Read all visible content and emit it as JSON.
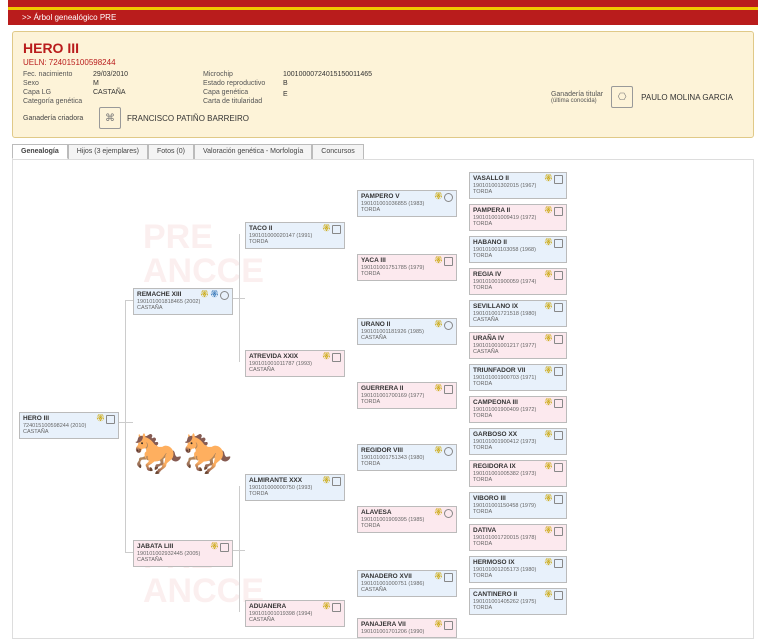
{
  "breadcrumb": ">>   Árbol genealógico PRE",
  "header": {
    "name": "HERO III",
    "ueln_label": "UELN: 724015100598244",
    "labels1": [
      "Fec. nacimiento",
      "Sexo",
      "Capa LG",
      "Categoría genética"
    ],
    "vals1": [
      "29/03/2010",
      "M",
      "CASTAÑA",
      ""
    ],
    "labels2": [
      "Microchip",
      "Estado reproductivo",
      "Capa genética",
      "Carta de titularidad"
    ],
    "vals2": [
      "10010000724015150011465",
      "B",
      "",
      "E"
    ],
    "breeder_label": "Ganadería criadora",
    "breeder_name": "FRANCISCO PATIÑO BARREIRO",
    "owner_label1": "Ganadería titular",
    "owner_label2": "(última conocida)",
    "owner_name": "PAULO MOLINA GARCIA"
  },
  "tabs": [
    "Genealogía",
    "Hijos (3 ejemplares)",
    "Fotos (0)",
    "Valoración genética - Morfología",
    "Concursos"
  ],
  "active_tab": 0,
  "colors": {
    "male": "#e8f1fb",
    "female": "#fce9ee",
    "border": "#bbbbbb",
    "accent": "#b91c1c"
  },
  "nodes": {
    "root": {
      "name": "HERO III",
      "code": "724015100598244 (2010)",
      "coat": "CASTAÑA",
      "sex": "male",
      "badges": [
        "gold",
        "box"
      ]
    },
    "sire": {
      "name": "REMACHE XIII",
      "code": "190101001818465 (2002)",
      "coat": "CASTAÑA",
      "sex": "male",
      "badges": [
        "gold",
        "blue",
        "circle"
      ]
    },
    "dam": {
      "name": "JABATA LIII",
      "code": "190101002932445 (2005)",
      "coat": "CASTAÑA",
      "sex": "female",
      "badges": [
        "gold",
        "box"
      ]
    },
    "ss": {
      "name": "TACO II",
      "code": "190101000020147 (1991)",
      "coat": "TORDA",
      "sex": "male",
      "badges": [
        "gold",
        "box"
      ]
    },
    "sd": {
      "name": "ATREVIDA XXIX",
      "code": "190101001011787 (1993)",
      "coat": "CASTAÑA",
      "sex": "female",
      "badges": [
        "gold",
        "box"
      ]
    },
    "ds": {
      "name": "ALMIRANTE XXX",
      "code": "190101000000750 (1993)",
      "coat": "TORDA",
      "sex": "male",
      "badges": [
        "gold",
        "box"
      ]
    },
    "dd": {
      "name": "ADUANERA",
      "code": "190101001019398 (1994)",
      "coat": "CASTAÑA",
      "sex": "female",
      "badges": [
        "gold",
        "box"
      ]
    },
    "sss": {
      "name": "PAMPERO V",
      "code": "190101001036855 (1983)",
      "coat": "TORDA",
      "sex": "male",
      "badges": [
        "gold",
        "circle"
      ]
    },
    "ssd": {
      "name": "YACA III",
      "code": "190101001751785 (1979)",
      "coat": "TORDA",
      "sex": "female",
      "badges": [
        "gold",
        "box"
      ]
    },
    "sds": {
      "name": "URANO II",
      "code": "190101001181926 (1985)",
      "coat": "CASTAÑA",
      "sex": "male",
      "badges": [
        "gold",
        "circle"
      ]
    },
    "sdd": {
      "name": "GUERRERA II",
      "code": "190101001700169 (1977)",
      "coat": "TORDA",
      "sex": "female",
      "badges": [
        "gold",
        "box"
      ]
    },
    "dss": {
      "name": "REGIDOR VIII",
      "code": "190101001751343 (1980)",
      "coat": "TORDA",
      "sex": "male",
      "badges": [
        "gold",
        "circle"
      ]
    },
    "dsd": {
      "name": "ALAVESA",
      "code": "190101001909395 (1985)",
      "coat": "TORDA",
      "sex": "female",
      "badges": [
        "gold",
        "circle"
      ]
    },
    "dds": {
      "name": "PANADERO XVII",
      "code": "190101001000751 (1986)",
      "coat": "CASTAÑA",
      "sex": "male",
      "badges": [
        "gold",
        "box"
      ]
    },
    "ddd": {
      "name": "PANAJERA VII",
      "code": "190101001701206 (1990)",
      "coat": "TORDA",
      "sex": "female",
      "badges": [
        "gold",
        "box"
      ]
    },
    "g5": [
      {
        "name": "VASALLO II",
        "code": "190101001302015 (1967)",
        "coat": "TORDA",
        "sex": "male"
      },
      {
        "name": "PAMPERA II",
        "code": "190101001009419 (1972)",
        "coat": "TORDA",
        "sex": "female"
      },
      {
        "name": "HABANO II",
        "code": "190101001103058 (1968)",
        "coat": "TORDA",
        "sex": "male"
      },
      {
        "name": "REGIA IV",
        "code": "190101001900059 (1974)",
        "coat": "TORDA",
        "sex": "female"
      },
      {
        "name": "SEVILLANO IX",
        "code": "190101001721518 (1980)",
        "coat": "CASTAÑA",
        "sex": "male"
      },
      {
        "name": "URAÑA IV",
        "code": "190101001001217 (1977)",
        "coat": "CASTAÑA",
        "sex": "female"
      },
      {
        "name": "TRIUNFADOR VII",
        "code": "190101001900703 (1971)",
        "coat": "TORDA",
        "sex": "male"
      },
      {
        "name": "CAMPEONA III",
        "code": "190101001900409 (1972)",
        "coat": "TORDA",
        "sex": "female"
      },
      {
        "name": "GARBOSO XX",
        "code": "190101001900412 (1973)",
        "coat": "TORDA",
        "sex": "male"
      },
      {
        "name": "REGIDORA IX",
        "code": "190101001005382 (1973)",
        "coat": "TORDA",
        "sex": "female"
      },
      {
        "name": "VIBORO III",
        "code": "190101001150458 (1979)",
        "coat": "TORDA",
        "sex": "male"
      },
      {
        "name": "DATIVA",
        "code": "190101001720015 (1978)",
        "coat": "TORDA",
        "sex": "female"
      },
      {
        "name": "HERMOSO IX",
        "code": "190101001205173 (1980)",
        "coat": "TORDA",
        "sex": "male"
      },
      {
        "name": "CANTINERO II",
        "code": "190101001405262 (1975)",
        "coat": "TORDA",
        "sex": "male"
      }
    ]
  }
}
